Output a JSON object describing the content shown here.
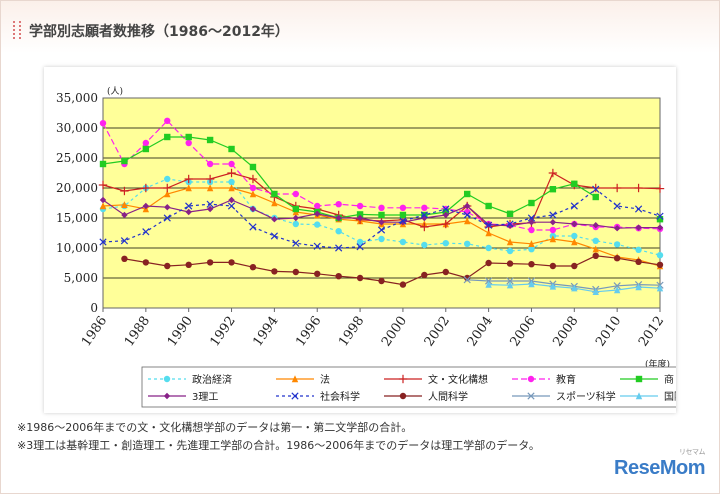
{
  "page": {
    "title": "学部別志願者数推移（1986〜2012年）",
    "notes": [
      "※1986〜2006年までの文・文化構想学部のデータは第一・第二文学部の合計。",
      "※3理工は基幹理工・創造理工・先進理工学部の合計。1986〜2006年までのデータは理工学部のデータ。"
    ],
    "logo": "ReseMom",
    "logo_sub": "リセマム"
  },
  "chart_data": {
    "type": "line",
    "ylabel": "(人)",
    "xlabel": "(年度)",
    "ylim": [
      0,
      35000
    ],
    "yticks": [
      0,
      5000,
      10000,
      15000,
      20000,
      25000,
      30000,
      35000
    ],
    "ytick_labels": [
      "0",
      "5,000",
      "10,000",
      "15,000",
      "20,000",
      "25,000",
      "30,000",
      "35,000"
    ],
    "xlim": [
      1986,
      2012
    ],
    "xtick_labels": [
      "1986",
      "1988",
      "1990",
      "1992",
      "1994",
      "1996",
      "1998",
      "2000",
      "2002",
      "2004",
      "2006",
      "2008",
      "2010",
      "2012"
    ],
    "grid": true,
    "plot_bg": "#ffff99",
    "legend_position": "bottom",
    "series": [
      {
        "name": "政治経済",
        "color": "#55ddee",
        "marker": "circle",
        "dash": "3,3",
        "x": [
          1986,
          1987,
          1988,
          1989,
          1990,
          1991,
          1992,
          1993,
          1994,
          1995,
          1996,
          1997,
          1998,
          1999,
          2000,
          2001,
          2002,
          2003,
          2004,
          2005,
          2006,
          2007,
          2008,
          2009,
          2010,
          2011,
          2012
        ],
        "values": [
          16500,
          17000,
          20000,
          21500,
          21000,
          21000,
          21000,
          16500,
          15000,
          14000,
          13900,
          12800,
          11000,
          11500,
          11000,
          10500,
          10800,
          10700,
          10000,
          9500,
          9800,
          12000,
          12000,
          11200,
          10600,
          9700,
          8800
        ]
      },
      {
        "name": "法",
        "color": "#ff8800",
        "marker": "triangle",
        "dash": "",
        "x": [
          1986,
          1987,
          1988,
          1989,
          1990,
          1991,
          1992,
          1993,
          1994,
          1995,
          1996,
          1997,
          1998,
          1999,
          2000,
          2001,
          2002,
          2003,
          2004,
          2005,
          2006,
          2007,
          2008,
          2009,
          2010,
          2011,
          2012
        ],
        "values": [
          17000,
          17200,
          16500,
          19000,
          20000,
          20000,
          20000,
          19000,
          17500,
          16000,
          15500,
          14800,
          14500,
          14000,
          14000,
          14000,
          14000,
          14500,
          12500,
          11000,
          10700,
          11500,
          11000,
          9800,
          8500,
          8000,
          7000
        ]
      },
      {
        "name": "文・文化構想",
        "color": "#cc2222",
        "marker": "plus",
        "dash": "",
        "x": [
          1986,
          1987,
          1988,
          1989,
          1990,
          1991,
          1992,
          1993,
          1994,
          1995,
          1996,
          1997,
          1998,
          1999,
          2000,
          2001,
          2002,
          2003,
          2004,
          2005,
          2006,
          2007,
          2008,
          2009,
          2010,
          2011,
          2012
        ],
        "values": [
          20500,
          19500,
          20000,
          20000,
          21500,
          21500,
          22500,
          21500,
          18500,
          17000,
          16500,
          15500,
          14700,
          14500,
          14700,
          13500,
          14000,
          17000,
          13500,
          14000,
          14200,
          22500,
          20500,
          20000,
          20000,
          20000,
          19900
        ]
      },
      {
        "name": "教育",
        "color": "#ff22ee",
        "marker": "circle",
        "dash": "6,3",
        "x": [
          1986,
          1987,
          1988,
          1989,
          1990,
          1991,
          1992,
          1993,
          1994,
          1995,
          1996,
          1997,
          1998,
          1999,
          2000,
          2001,
          2002,
          2003,
          2004,
          2005,
          2006,
          2007,
          2008,
          2009,
          2010,
          2011,
          2012
        ],
        "values": [
          30800,
          24000,
          27500,
          31200,
          27500,
          24000,
          24000,
          20000,
          19000,
          19000,
          17000,
          17300,
          17000,
          16700,
          16700,
          16700,
          16500,
          16000,
          14000,
          13800,
          13000,
          13000,
          14000,
          13500,
          13500,
          13300,
          13200
        ]
      },
      {
        "name": "商",
        "color": "#22cc22",
        "marker": "square",
        "dash": "",
        "x": [
          1986,
          1987,
          1988,
          1989,
          1990,
          1991,
          1992,
          1993,
          1994,
          1995,
          1996,
          1997,
          1998,
          1999,
          2000,
          2001,
          2002,
          2003,
          2004,
          2005,
          2006,
          2007,
          2008,
          2009,
          2010,
          2011,
          2012
        ],
        "values": [
          24000,
          24500,
          26500,
          28500,
          28500,
          28000,
          26500,
          23500,
          19000,
          16500,
          16000,
          15000,
          15600,
          15500,
          15500,
          15500,
          16000,
          19000,
          17000,
          15700,
          17500,
          19800,
          20700,
          18500,
          null,
          null,
          14800
        ]
      },
      {
        "name": "3理工",
        "color": "#882288",
        "marker": "diamond",
        "dash": "",
        "x": [
          1986,
          1987,
          1988,
          1989,
          1990,
          1991,
          1992,
          1993,
          1994,
          1995,
          1996,
          1997,
          1998,
          1999,
          2000,
          2001,
          2002,
          2003,
          2004,
          2005,
          2006,
          2007,
          2008,
          2009,
          2010,
          2011,
          2012
        ],
        "values": [
          18000,
          15500,
          17000,
          16800,
          16000,
          16500,
          18000,
          16500,
          14800,
          15000,
          15700,
          15000,
          15000,
          14300,
          14300,
          15000,
          15500,
          17000,
          13900,
          13700,
          14300,
          14300,
          14000,
          13800,
          13300,
          13400,
          13400
        ]
      },
      {
        "name": "社会科学",
        "color": "#2233cc",
        "marker": "x",
        "dash": "3,3",
        "x": [
          1986,
          1987,
          1988,
          1989,
          1990,
          1991,
          1992,
          1993,
          1994,
          1995,
          1996,
          1997,
          1998,
          1999,
          2000,
          2001,
          2002,
          2003,
          2004,
          2005,
          2006,
          2007,
          2008,
          2009,
          2010,
          2011,
          2012
        ],
        "values": [
          11000,
          11200,
          12700,
          15000,
          17000,
          17300,
          17000,
          13500,
          12000,
          10800,
          10300,
          10000,
          10200,
          13000,
          14500,
          15500,
          16500,
          15500,
          13800,
          14000,
          15000,
          15500,
          17000,
          19800,
          17000,
          16500,
          15300
        ]
      },
      {
        "name": "人間科学",
        "color": "#882222",
        "marker": "circle",
        "dash": "",
        "x": [
          1987,
          1988,
          1989,
          1990,
          1991,
          1992,
          1993,
          1994,
          1995,
          1996,
          1997,
          1998,
          1999,
          2000,
          2001,
          2002,
          2003,
          2004,
          2005,
          2006,
          2007,
          2008,
          2009,
          2010,
          2011,
          2012
        ],
        "values": [
          8200,
          7600,
          7000,
          7200,
          7600,
          7600,
          6800,
          6100,
          6000,
          5700,
          5300,
          5000,
          4500,
          3900,
          5500,
          6000,
          5000,
          7500,
          7400,
          7300,
          7000,
          7000,
          8700,
          8300,
          7700,
          7200
        ]
      },
      {
        "name": "スポーツ科学",
        "color": "#7799bb",
        "marker": "x",
        "dash": "",
        "x": [
          2003,
          2004,
          2005,
          2006,
          2007,
          2008,
          2009,
          2010,
          2011,
          2012
        ],
        "values": [
          4700,
          4500,
          4500,
          4500,
          4000,
          3600,
          3100,
          3700,
          3900,
          3800
        ]
      },
      {
        "name": "国際教養",
        "color": "#66ccee",
        "marker": "triangle",
        "dash": "",
        "x": [
          2004,
          2005,
          2006,
          2007,
          2008,
          2009,
          2010,
          2011,
          2012
        ],
        "values": [
          3900,
          3800,
          4000,
          3600,
          3300,
          2700,
          3000,
          3500,
          3300
        ]
      }
    ]
  }
}
